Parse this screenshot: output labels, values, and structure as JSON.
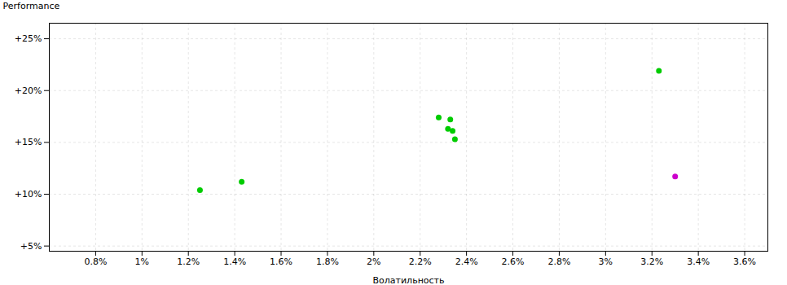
{
  "chart_data": {
    "type": "scatter",
    "xlabel": "Волатильность",
    "ylabel": "Performance",
    "xlim": [
      0.006,
      0.037
    ],
    "ylim": [
      0.045,
      0.265
    ],
    "xticks": [
      {
        "value": 0.008,
        "label": "0.8%"
      },
      {
        "value": 0.01,
        "label": "1%"
      },
      {
        "value": 0.012,
        "label": "1.2%"
      },
      {
        "value": 0.014,
        "label": "1.4%"
      },
      {
        "value": 0.016,
        "label": "1.6%"
      },
      {
        "value": 0.018,
        "label": "1.8%"
      },
      {
        "value": 0.02,
        "label": "2%"
      },
      {
        "value": 0.022,
        "label": "2.2%"
      },
      {
        "value": 0.024,
        "label": "2.4%"
      },
      {
        "value": 0.026,
        "label": "2.6%"
      },
      {
        "value": 0.028,
        "label": "2.8%"
      },
      {
        "value": 0.03,
        "label": "3%"
      },
      {
        "value": 0.032,
        "label": "3.2%"
      },
      {
        "value": 0.034,
        "label": "3.4%"
      },
      {
        "value": 0.036,
        "label": "3.6%"
      }
    ],
    "yticks": [
      {
        "value": 0.05,
        "label": "+5%"
      },
      {
        "value": 0.1,
        "label": "+10%"
      },
      {
        "value": 0.15,
        "label": "+15%"
      },
      {
        "value": 0.2,
        "label": "+20%"
      },
      {
        "value": 0.25,
        "label": "+25%"
      }
    ],
    "grid": true,
    "series": [
      {
        "color": "#00cc00",
        "x": [
          0.0125,
          0.0143,
          0.0228,
          0.0233,
          0.0232,
          0.0234,
          0.0235,
          0.0323
        ],
        "values": [
          0.104,
          0.112,
          0.174,
          0.172,
          0.163,
          0.161,
          0.153,
          0.219
        ]
      },
      {
        "color": "#cc00cc",
        "x": [
          0.033
        ],
        "values": [
          0.117
        ]
      }
    ]
  }
}
